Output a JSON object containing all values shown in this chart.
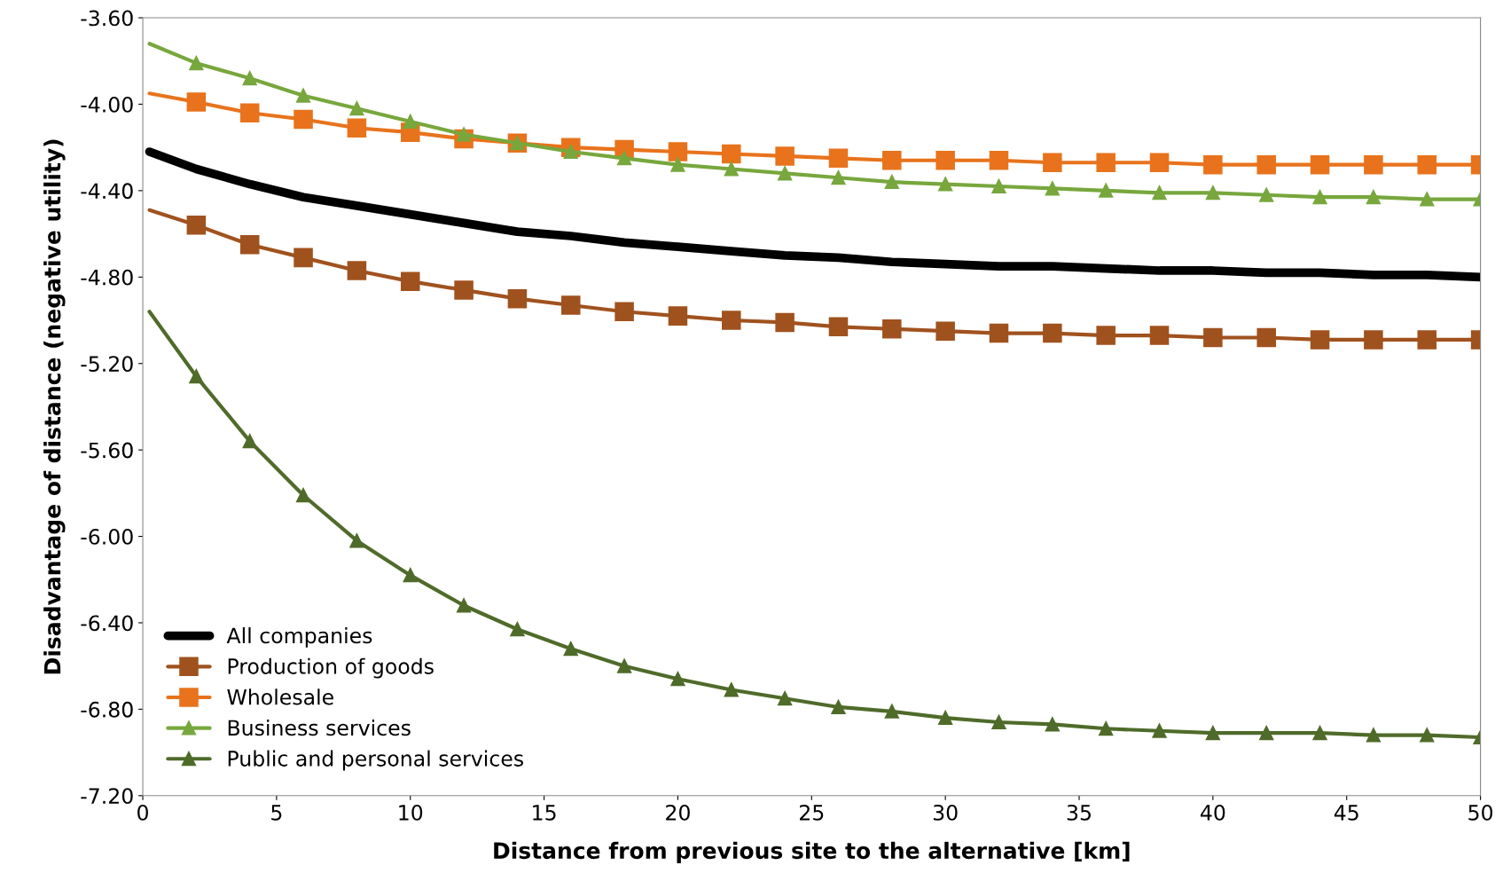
{
  "chart_data": {
    "type": "line",
    "xlabel": "Distance from previous site to the alternative [km]",
    "ylabel": "Disadvantage of distance (negative utility)",
    "x": [
      0.25,
      2,
      4,
      6,
      8,
      10,
      12,
      14,
      16,
      18,
      20,
      22,
      24,
      26,
      28,
      30,
      32,
      34,
      36,
      38,
      40,
      42,
      44,
      46,
      48,
      50
    ],
    "series": [
      {
        "name": "All companies",
        "color": "#000000",
        "marker": "none",
        "values": [
          -4.22,
          -4.3,
          -4.37,
          -4.43,
          -4.47,
          -4.51,
          -4.55,
          -4.59,
          -4.61,
          -4.64,
          -4.66,
          -4.68,
          -4.7,
          -4.71,
          -4.73,
          -4.74,
          -4.75,
          -4.75,
          -4.76,
          -4.77,
          -4.77,
          -4.78,
          -4.78,
          -4.79,
          -4.79,
          -4.8
        ]
      },
      {
        "name": "Production of goods",
        "color": "#a0521e",
        "marker": "square",
        "values": [
          -4.49,
          -4.56,
          -4.65,
          -4.71,
          -4.77,
          -4.82,
          -4.86,
          -4.9,
          -4.93,
          -4.96,
          -4.98,
          -5.0,
          -5.01,
          -5.03,
          -5.04,
          -5.05,
          -5.06,
          -5.06,
          -5.07,
          -5.07,
          -5.08,
          -5.08,
          -5.09,
          -5.09,
          -5.09,
          -5.09
        ]
      },
      {
        "name": "Wholesale",
        "color": "#e8731c",
        "marker": "square",
        "values": [
          -3.95,
          -3.99,
          -4.04,
          -4.07,
          -4.11,
          -4.13,
          -4.16,
          -4.18,
          -4.2,
          -4.21,
          -4.22,
          -4.23,
          -4.24,
          -4.25,
          -4.26,
          -4.26,
          -4.26,
          -4.27,
          -4.27,
          -4.27,
          -4.28,
          -4.28,
          -4.28,
          -4.28,
          -4.28,
          -4.28
        ]
      },
      {
        "name": "Business services",
        "color": "#77a73d",
        "marker": "triangle",
        "values": [
          -3.72,
          -3.81,
          -3.88,
          -3.96,
          -4.02,
          -4.08,
          -4.14,
          -4.18,
          -4.22,
          -4.25,
          -4.28,
          -4.3,
          -4.32,
          -4.34,
          -4.36,
          -4.37,
          -4.38,
          -4.39,
          -4.4,
          -4.41,
          -4.41,
          -4.42,
          -4.43,
          -4.43,
          -4.44,
          -4.44
        ]
      },
      {
        "name": "Public and personal services",
        "color": "#4f6b2a",
        "marker": "triangle",
        "values": [
          -4.96,
          -5.26,
          -5.56,
          -5.81,
          -6.02,
          -6.18,
          -6.32,
          -6.43,
          -6.52,
          -6.6,
          -6.66,
          -6.71,
          -6.75,
          -6.79,
          -6.81,
          -6.84,
          -6.86,
          -6.87,
          -6.89,
          -6.9,
          -6.91,
          -6.91,
          -6.91,
          -6.92,
          -6.92,
          -6.93
        ]
      }
    ],
    "xlim": [
      0,
      50
    ],
    "xticks": [
      0,
      5,
      10,
      15,
      20,
      25,
      30,
      35,
      40,
      45,
      50
    ],
    "ylim": [
      -7.2,
      -3.6
    ],
    "yticks": [
      {
        "value": -7.2,
        "label": "-7.20"
      },
      {
        "value": -6.8,
        "label": "-6.80"
      },
      {
        "value": -6.4,
        "label": "-6.40"
      },
      {
        "value": -6.0,
        "label": "-6.00"
      },
      {
        "value": -5.6,
        "label": "-5.60"
      },
      {
        "value": -5.2,
        "label": "-5.20"
      },
      {
        "value": -4.8,
        "label": "-4.80"
      },
      {
        "value": -4.4,
        "label": "-4.40"
      },
      {
        "value": -4.0,
        "label": "-4.00"
      },
      {
        "value": -3.6,
        "label": "-3.60"
      }
    ],
    "grid": false,
    "legend": "bottom left",
    "line_style": "solid"
  }
}
